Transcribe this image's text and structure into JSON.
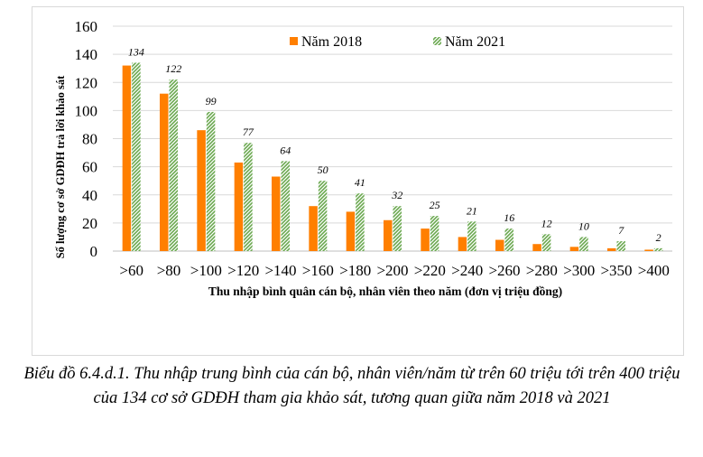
{
  "chart_data": {
    "type": "bar",
    "categories": [
      ">60",
      ">80",
      ">100",
      ">120",
      ">140",
      ">160",
      ">180",
      ">200",
      ">220",
      ">240",
      ">260",
      ">280",
      ">300",
      ">350",
      ">400"
    ],
    "series": [
      {
        "name": "Năm 2018",
        "values": [
          132,
          112,
          86,
          63,
          53,
          32,
          28,
          22,
          16,
          10,
          8,
          5,
          3,
          2,
          1
        ],
        "color": "#ff7f00",
        "pattern": "solid"
      },
      {
        "name": "Năm 2021",
        "values": [
          134,
          122,
          99,
          77,
          64,
          50,
          41,
          32,
          25,
          21,
          16,
          12,
          10,
          7,
          2
        ],
        "color": "#70ad47",
        "pattern": "hatched"
      }
    ],
    "data_labels": [
      "134",
      "122",
      "99",
      "77",
      "64",
      "50",
      "41",
      "32",
      "25",
      "21",
      "16",
      "12",
      "10",
      "7",
      "2"
    ],
    "ylim": [
      0,
      160
    ],
    "yticks": [
      0,
      20,
      40,
      60,
      80,
      100,
      120,
      140,
      160
    ],
    "xlabel": "Thu nhập bình quân cán bộ, nhân viên theo năm (đơn vị triệu đồng)",
    "ylabel": "Số lượng cơ sở GDĐH trả lời khảo sát",
    "gridlines": true,
    "legend_position": "top-center"
  },
  "caption": "Biểu đồ 6.4.d.1. Thu nhập trung bình của cán bộ, nhân viên/năm từ trên 60 triệu tới trên 400 triệu của 134 cơ sở GDĐH tham gia khảo sát, tương quan giữa năm 2018 và 2021"
}
